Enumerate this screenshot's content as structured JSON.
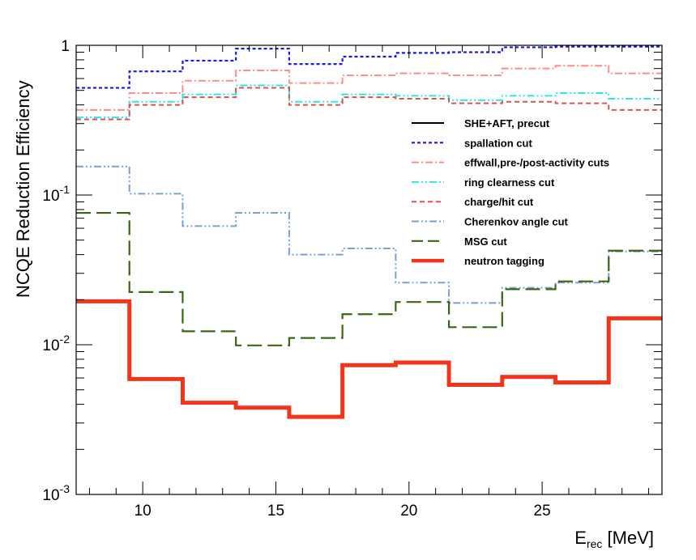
{
  "chart_data": {
    "type": "step",
    "title": "",
    "xlabel": "E",
    "xlabel_sub": "rec",
    "xlabel_unit": " [MeV]",
    "ylabel": "NCQE Reduction Efficiency",
    "xlim": [
      7.5,
      29.5
    ],
    "ylim": [
      0.001,
      1
    ],
    "yscale": "log",
    "grid": false,
    "legend_position": "right",
    "x_ticks": [
      10,
      15,
      20,
      25
    ],
    "y_ticks": [
      {
        "base": "10",
        "exp": "-3",
        "value": 0.001
      },
      {
        "base": "10",
        "exp": "-2",
        "value": 0.01
      },
      {
        "base": "10",
        "exp": "-1",
        "value": 0.1
      },
      {
        "base": "1",
        "exp": "",
        "value": 1
      }
    ],
    "bin_edges": [
      7.5,
      9.5,
      11.5,
      13.5,
      15.5,
      17.5,
      19.5,
      21.5,
      23.5,
      25.5,
      27.5,
      29.5
    ],
    "series": [
      {
        "name": "SHE+AFT, precut",
        "color": "#000000",
        "style": "solid",
        "values": []
      },
      {
        "name": "spallation cut",
        "color": "#1a1ae6",
        "style": "dotted",
        "values": [
          0.52,
          0.67,
          0.79,
          0.95,
          0.75,
          0.84,
          0.89,
          0.9,
          0.97,
          0.98,
          0.98
        ]
      },
      {
        "name": "effwall,pre-/post-activity cuts",
        "color": "#ff8c8c",
        "style": "dashdot",
        "values": [
          0.37,
          0.48,
          0.58,
          0.68,
          0.56,
          0.63,
          0.65,
          0.63,
          0.7,
          0.73,
          0.65
        ]
      },
      {
        "name": "ring clearness cut",
        "color": "#2ee6e6",
        "style": "dashdotdot",
        "values": [
          0.33,
          0.42,
          0.47,
          0.54,
          0.42,
          0.47,
          0.46,
          0.43,
          0.46,
          0.48,
          0.44
        ]
      },
      {
        "name": "charge/hit cut",
        "color": "#d9534f",
        "style": "dashed",
        "values": [
          0.32,
          0.4,
          0.45,
          0.52,
          0.4,
          0.45,
          0.44,
          0.41,
          0.42,
          0.41,
          0.37
        ]
      },
      {
        "name": "Cherenkov angle cut",
        "color": "#7b9fd6",
        "style": "dashdotdot",
        "values": [
          0.155,
          0.102,
          0.062,
          0.076,
          0.04,
          0.044,
          0.026,
          0.019,
          0.024,
          0.026,
          0.042
        ]
      },
      {
        "name": "MSG cut",
        "color": "#3b6614",
        "style": "longdash",
        "values": [
          0.076,
          0.0225,
          0.0123,
          0.0099,
          0.0111,
          0.016,
          0.0193,
          0.0131,
          0.0235,
          0.0265,
          0.0425
        ]
      },
      {
        "name": "neutron tagging",
        "color": "#f2351a",
        "style": "thick",
        "values": [
          0.0195,
          0.0059,
          0.0041,
          0.0038,
          0.0033,
          0.0073,
          0.0076,
          0.0054,
          0.0061,
          0.0056,
          0.015
        ]
      }
    ]
  }
}
